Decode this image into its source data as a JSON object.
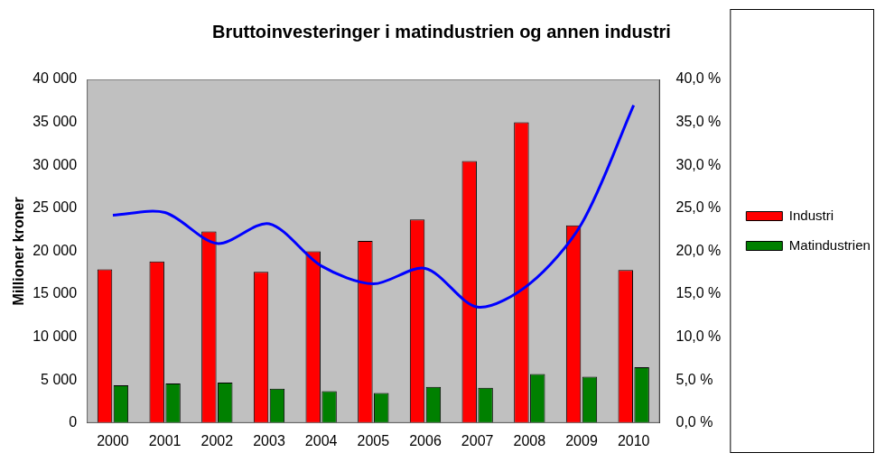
{
  "chart_data": {
    "type": "bar",
    "title": "Bruttoinvesteringer i matindustrien og annen industri",
    "y_label": "Millioner kroner",
    "categories": [
      "2000",
      "2001",
      "2002",
      "2003",
      "2004",
      "2005",
      "2006",
      "2007",
      "2008",
      "2009",
      "2010"
    ],
    "series": [
      {
        "name": "Industri",
        "type": "bar",
        "color": "#ff0000",
        "values": [
          17900,
          18800,
          22300,
          17600,
          20000,
          21200,
          23700,
          30500,
          35000,
          23000,
          17800
        ]
      },
      {
        "name": "Matindustrien",
        "type": "bar",
        "color": "#008000",
        "values": [
          4400,
          4600,
          4700,
          4000,
          3700,
          3500,
          4200,
          4100,
          5700,
          5400,
          6500
        ]
      },
      {
        "type": "line",
        "axis": "y2",
        "color": "#0000ff",
        "values": [
          24.2,
          24.5,
          20.9,
          23.2,
          18.3,
          16.2,
          18.0,
          13.5,
          16.2,
          23.2,
          37.0
        ]
      }
    ],
    "ylim": [
      0,
      40000
    ],
    "yticks": [
      0,
      {
        "value": 5000,
        "label": "5 000"
      },
      {
        "value": 10000,
        "label": "10 000"
      },
      {
        "value": 15000,
        "label": "15 000"
      },
      {
        "value": 20000,
        "label": "20 000"
      },
      {
        "value": 25000,
        "label": "25 000"
      },
      {
        "value": 30000,
        "label": "30 000"
      },
      {
        "value": 35000,
        "label": "35 000"
      },
      {
        "value": 40000,
        "label": "40 000"
      }
    ],
    "y2lim": [
      0,
      40
    ],
    "y2ticks": [
      {
        "value": 0,
        "label": "0,0 %"
      },
      {
        "value": 5,
        "label": "5,0 %"
      },
      {
        "value": 10,
        "label": "10,0 %"
      },
      {
        "value": 15,
        "label": "15,0 %"
      },
      {
        "value": 20,
        "label": "20,0 %"
      },
      {
        "value": 25,
        "label": "25,0 %"
      },
      {
        "value": 30,
        "label": "30,0 %"
      },
      {
        "value": 35,
        "label": "35,0 %"
      },
      {
        "value": 40,
        "label": "40,0 %"
      }
    ],
    "grid": false,
    "legend": "right"
  }
}
